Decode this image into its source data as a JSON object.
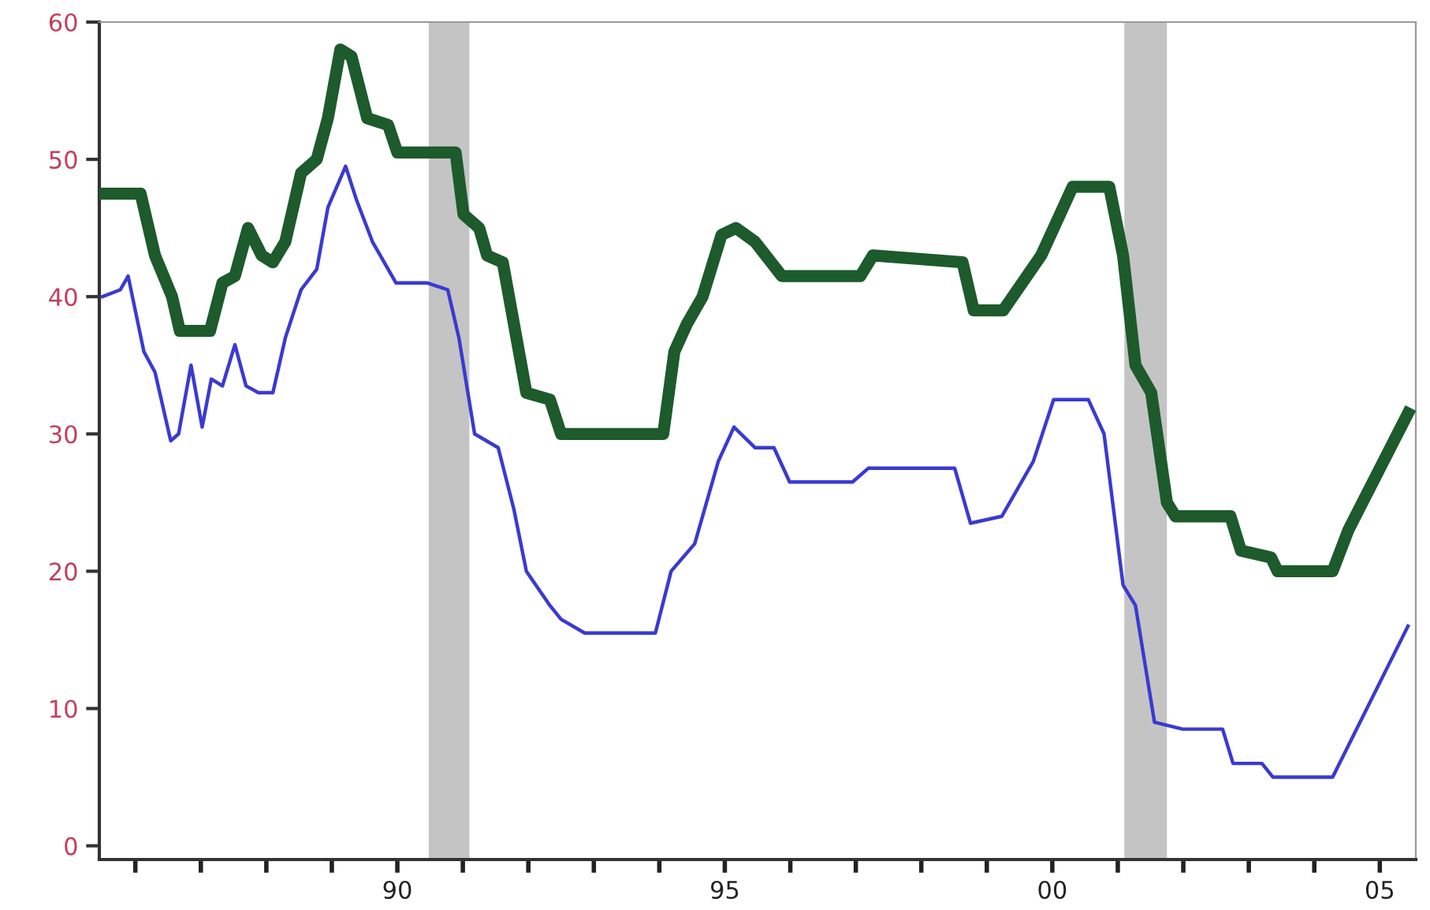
{
  "chart_data": {
    "type": "line",
    "xlim": [
      1985.45,
      2005.55
    ],
    "ylim": [
      -1,
      60
    ],
    "yticks": [
      0,
      10,
      20,
      30,
      40,
      50,
      60
    ],
    "xticks": [
      {
        "value": 1986,
        "label": null
      },
      {
        "value": 1987,
        "label": null
      },
      {
        "value": 1988,
        "label": null
      },
      {
        "value": 1989,
        "label": null
      },
      {
        "value": 1990,
        "label": "90"
      },
      {
        "value": 1991,
        "label": null
      },
      {
        "value": 1992,
        "label": null
      },
      {
        "value": 1993,
        "label": null
      },
      {
        "value": 1994,
        "label": null
      },
      {
        "value": 1995,
        "label": "95"
      },
      {
        "value": 1996,
        "label": null
      },
      {
        "value": 1997,
        "label": null
      },
      {
        "value": 1998,
        "label": null
      },
      {
        "value": 1999,
        "label": null
      },
      {
        "value": 2000,
        "label": "00"
      },
      {
        "value": 2001,
        "label": null
      },
      {
        "value": 2002,
        "label": null
      },
      {
        "value": 2003,
        "label": null
      },
      {
        "value": 2004,
        "label": null
      },
      {
        "value": 2005,
        "label": "05"
      }
    ],
    "grid": false,
    "legend": false,
    "marker": "none",
    "line_style": "solid",
    "bands": [
      {
        "axis": "x",
        "from": 1990.48,
        "to": 1991.1,
        "label": null,
        "color": "#c4c4c4"
      },
      {
        "axis": "x",
        "from": 2001.1,
        "to": 2001.75,
        "label": null,
        "color": "#c4c4c4"
      }
    ],
    "series": [
      {
        "color": "#1d5a2c",
        "x": [
          1985.5,
          1986.08,
          1986.3,
          1986.56,
          1986.68,
          1987.14,
          1987.33,
          1987.52,
          1987.72,
          1987.93,
          1988.1,
          1988.29,
          1988.53,
          1988.77,
          1988.94,
          1989.13,
          1989.3,
          1989.54,
          1989.86,
          1990.0,
          1990.89,
          1991.01,
          1991.25,
          1991.37,
          1991.61,
          1991.97,
          1992.33,
          1992.5,
          1994.06,
          1994.23,
          1994.42,
          1994.66,
          1994.95,
          1995.17,
          1995.46,
          1995.87,
          1997.07,
          1997.26,
          1998.63,
          1998.8,
          1999.25,
          1999.83,
          2000.31,
          2000.87,
          2001.08,
          2001.27,
          2001.51,
          2001.75,
          2001.88,
          2002.72,
          2002.88,
          2003.34,
          2003.44,
          2004.28,
          2004.52,
          2005.43
        ],
        "values": [
          47.5,
          47.5,
          43,
          40,
          37.5,
          37.5,
          41,
          41.5,
          45,
          43,
          42.5,
          44,
          49,
          50,
          53,
          58,
          57.5,
          53,
          52.5,
          50.5,
          50.5,
          46,
          45,
          43,
          42.5,
          33,
          32.5,
          30,
          30,
          36,
          38,
          40,
          44.5,
          45,
          44,
          41.5,
          41.5,
          43,
          42.5,
          39,
          39,
          43,
          48,
          48,
          43,
          35,
          33,
          25,
          24,
          24,
          21.5,
          21,
          20,
          20,
          23,
          31.5
        ]
      },
      {
        "color": "#3a3ad2",
        "x": [
          1985.5,
          1985.77,
          1985.89,
          1986.13,
          1986.3,
          1986.54,
          1986.66,
          1986.85,
          1987.02,
          1987.16,
          1987.33,
          1987.52,
          1987.69,
          1987.88,
          1988.1,
          1988.29,
          1988.53,
          1988.77,
          1988.94,
          1989.21,
          1989.38,
          1989.62,
          1989.98,
          1990.46,
          1990.77,
          1990.94,
          1991.18,
          1991.54,
          1991.78,
          1991.97,
          1992.33,
          1992.5,
          1992.86,
          1993.1,
          1993.94,
          1994.18,
          1994.54,
          1994.9,
          1995.14,
          1995.46,
          1995.75,
          1995.99,
          1996.95,
          1997.19,
          1998.51,
          1998.75,
          1999.23,
          1999.71,
          2000.02,
          2000.55,
          2000.79,
          2001.08,
          2001.27,
          2001.56,
          2001.99,
          2002.6,
          2002.76,
          2003.2,
          2003.37,
          2004.28,
          2005.43
        ],
        "values": [
          40,
          40.5,
          41.5,
          36,
          34.5,
          29.5,
          30,
          35,
          30.5,
          34,
          33.5,
          36.5,
          33.5,
          33,
          33,
          37,
          40.5,
          42,
          46.5,
          49.5,
          47,
          44,
          41,
          41,
          40.5,
          37,
          30,
          29,
          24.5,
          20,
          17.5,
          16.5,
          15.5,
          15.5,
          15.5,
          20,
          22,
          28,
          30.5,
          29,
          29,
          26.5,
          26.5,
          27.5,
          27.5,
          23.5,
          24,
          28,
          32.5,
          32.5,
          30,
          19,
          17.5,
          9,
          8.5,
          8.5,
          6,
          6,
          5,
          5,
          16
        ]
      }
    ]
  }
}
